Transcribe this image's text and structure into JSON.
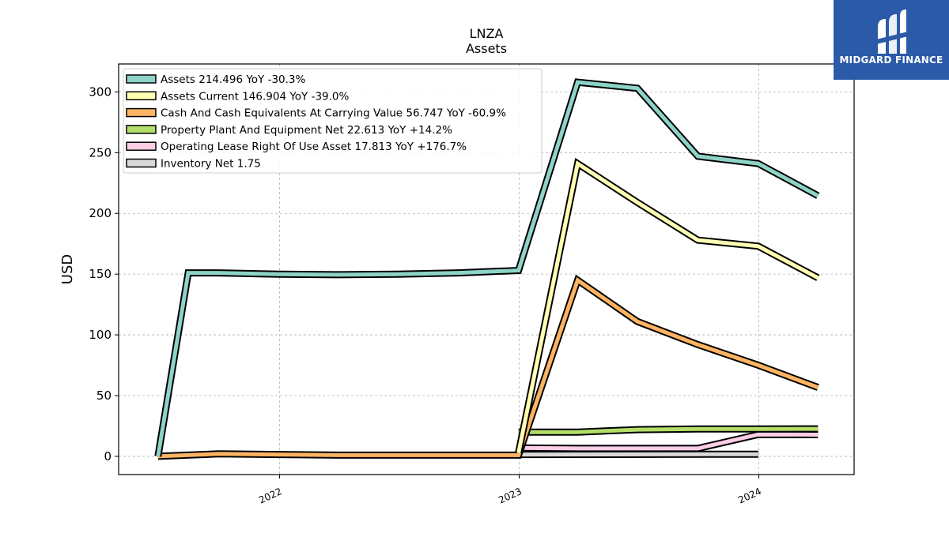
{
  "brand": {
    "name": "MIDGARD FINANCE",
    "bg_color": "#2b5aa8"
  },
  "chart_data": {
    "type": "line",
    "title": "LNZA",
    "subtitle": "Assets",
    "xlabel": "",
    "ylabel": "USD",
    "xlim": [
      "2021-05-01",
      "2024-05-25"
    ],
    "ylim": [
      -15,
      323
    ],
    "xticks": [
      "2022",
      "2023",
      "2024"
    ],
    "yticks": [
      0,
      50,
      100,
      150,
      200,
      250,
      300
    ],
    "grid": true,
    "legend_position": "top-left",
    "series": [
      {
        "name": "Assets  214.496 YoY -30.3%",
        "color": "#8dd3c7",
        "points": [
          [
            "2021-06-30",
            0
          ],
          [
            "2021-08-15",
            151
          ],
          [
            "2021-09-30",
            151
          ],
          [
            "2021-12-31",
            150
          ],
          [
            "2022-03-31",
            149.5
          ],
          [
            "2022-06-30",
            150
          ],
          [
            "2022-09-30",
            151
          ],
          [
            "2022-12-31",
            153
          ],
          [
            "2023-03-31",
            308
          ],
          [
            "2023-06-30",
            303
          ],
          [
            "2023-09-30",
            247
          ],
          [
            "2023-12-31",
            241
          ],
          [
            "2024-03-31",
            214.496
          ]
        ]
      },
      {
        "name": "Assets Current  146.904 YoY -39.0%",
        "color": "#ffffb3",
        "points": [
          [
            "2022-12-31",
            3
          ],
          [
            "2023-03-31",
            241
          ],
          [
            "2023-06-30",
            209
          ],
          [
            "2023-09-30",
            178
          ],
          [
            "2023-12-31",
            173
          ],
          [
            "2024-03-31",
            146.904
          ]
        ]
      },
      {
        "name": "Cash And Cash Equivalents At Carrying Value  56.747 YoY -60.9%",
        "color": "#fdb462",
        "points": [
          [
            "2021-06-30",
            0
          ],
          [
            "2021-09-30",
            2
          ],
          [
            "2021-12-31",
            1.5
          ],
          [
            "2022-03-31",
            1
          ],
          [
            "2022-06-30",
            1
          ],
          [
            "2022-09-30",
            1
          ],
          [
            "2022-12-31",
            1
          ],
          [
            "2023-03-31",
            145
          ],
          [
            "2023-06-30",
            111
          ],
          [
            "2023-09-30",
            92
          ],
          [
            "2023-12-31",
            75
          ],
          [
            "2024-03-31",
            56.747
          ]
        ]
      },
      {
        "name": "Property Plant And Equipment Net  22.613 YoY +14.2%",
        "color": "#b3de69",
        "points": [
          [
            "2022-12-31",
            20
          ],
          [
            "2023-03-31",
            20
          ],
          [
            "2023-06-30",
            22
          ],
          [
            "2023-09-30",
            22.5
          ],
          [
            "2023-12-31",
            22.5
          ],
          [
            "2024-03-31",
            22.613
          ]
        ]
      },
      {
        "name": "Operating Lease Right Of Use Asset  17.813 YoY +176.7%",
        "color": "#fccde5",
        "points": [
          [
            "2022-12-31",
            7
          ],
          [
            "2023-03-31",
            6.5
          ],
          [
            "2023-06-30",
            6.5
          ],
          [
            "2023-09-30",
            6.5
          ],
          [
            "2023-12-31",
            18
          ],
          [
            "2024-03-31",
            17.813
          ]
        ]
      },
      {
        "name": "Inventory Net  1.75",
        "color": "#d9d9d9",
        "points": [
          [
            "2022-12-31",
            1.5
          ],
          [
            "2023-12-31",
            1.75
          ]
        ]
      }
    ]
  }
}
